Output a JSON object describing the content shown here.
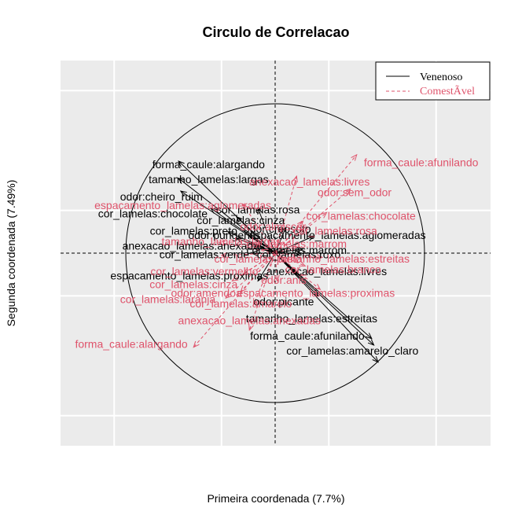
{
  "chart_data": {
    "type": "scatter",
    "title": "Circulo de Correlacao",
    "xlabel": "Primeira coordenada (7.7%)",
    "ylabel": "Segunda coordenada (7.49%)",
    "xlim": [
      -1.0,
      1.0
    ],
    "ylim": [
      -0.9,
      0.9
    ],
    "grid": true,
    "legend_position": "top-right",
    "series": [
      {
        "name": "Venenoso",
        "color": "#000000",
        "line": "solid",
        "points": [
          {
            "label": "forma_caule:alargando",
            "x": -0.45,
            "y": 0.43
          },
          {
            "label": "tamanho_lamelas:largas",
            "x": -0.45,
            "y": 0.35
          },
          {
            "label": "odor:cheiro_ruim",
            "x": -0.44,
            "y": 0.29
          },
          {
            "label": "cor_lamelas:chocolate",
            "x": -0.3,
            "y": 0.21
          },
          {
            "label": "cor_lamelas:rosa",
            "x": -0.08,
            "y": 0.21
          },
          {
            "label": "cor_lamelas:cinza",
            "x": -0.18,
            "y": 0.17
          },
          {
            "label": "odor:creosoto",
            "x": 0.05,
            "y": 0.12
          },
          {
            "label": "cor_lamelas:preto",
            "x": -0.22,
            "y": 0.1
          },
          {
            "label": "odor:pungente",
            "x": -0.18,
            "y": 0.07
          },
          {
            "label": "espacamento_lamelas:aglomeradas",
            "x": 0.18,
            "y": 0.08
          },
          {
            "label": "cor_lamelas:marrom",
            "x": 0.13,
            "y": 0.02
          },
          {
            "label": "anexacao_lamelas:anexadas",
            "x": -0.1,
            "y": 0.03
          },
          {
            "label": "cor_lamelas:verde",
            "x": -0.11,
            "y": 0.0
          },
          {
            "label": "cor_lamelas:roxo",
            "x": 0.12,
            "y": 0.0
          },
          {
            "label": "anexacao_lamelas:livres",
            "x": 0.1,
            "y": -0.1
          },
          {
            "label": "espacamento_lamelas:proximas",
            "x": -0.08,
            "y": -0.13
          },
          {
            "label": "odor:picante",
            "x": 0.2,
            "y": -0.2
          },
          {
            "label": "tamanho_lamelas:estreitas",
            "x": 0.45,
            "y": -0.4
          },
          {
            "label": "forma_caule:afunilando",
            "x": 0.46,
            "y": -0.43
          },
          {
            "label": "cor_lamelas:amarelo_claro",
            "x": 0.48,
            "y": -0.51
          }
        ]
      },
      {
        "name": "ComestÃ­vel",
        "color": "#df536b",
        "line": "dashed",
        "points": [
          {
            "label": "forma_caule:afunilando",
            "x": 0.38,
            "y": 0.46
          },
          {
            "label": "anexacao_lamelas:livres",
            "x": 0.1,
            "y": 0.36
          },
          {
            "label": "odor:sem_odor",
            "x": 0.35,
            "y": 0.3
          },
          {
            "label": "espacamento_lamelas:aglomeradas",
            "x": -0.15,
            "y": 0.23
          },
          {
            "label": "cor_lamelas:chocolate",
            "x": 0.24,
            "y": 0.19
          },
          {
            "label": "cor_lamelas:rosa",
            "x": 0.13,
            "y": 0.15
          },
          {
            "label": "odor:almiscar",
            "x": 0.03,
            "y": 0.12
          },
          {
            "label": "tamanho_lamelas:largas",
            "x": -0.26,
            "y": 0.05
          },
          {
            "label": "cor_lamelas:marrom",
            "x": 0.1,
            "y": 0.03
          },
          {
            "label": "tamanho_lamelas:estreitas",
            "x": 0.22,
            "y": -0.02
          },
          {
            "label": "cor_lamelas:preto",
            "x": -0.25,
            "y": -0.01
          },
          {
            "label": "cor_lamelas:branco",
            "x": 0.14,
            "y": -0.06
          },
          {
            "label": "cor_lamelas:vermelho",
            "x": -0.15,
            "y": -0.1
          },
          {
            "label": "odor:anis",
            "x": 0.01,
            "y": -0.13
          },
          {
            "label": "cor_lamelas:cinza",
            "x": -0.2,
            "y": -0.13
          },
          {
            "label": "odor:amendoa",
            "x": -0.16,
            "y": -0.18
          },
          {
            "label": "espacamento_lamelas:proximas",
            "x": 0.21,
            "y": -0.17
          },
          {
            "label": "cor_lamelas:laranja",
            "x": -0.23,
            "y": -0.21
          },
          {
            "label": "cor_lamelas:amarelo",
            "x": -0.1,
            "y": -0.24
          },
          {
            "label": "anexacao_lamelas:anexadas",
            "x": -0.12,
            "y": -0.36
          },
          {
            "label": "forma_caule:alargando",
            "x": -0.38,
            "y": -0.44
          }
        ]
      }
    ],
    "labels": [
      {
        "text": "forma_caule:alargando",
        "series": 0,
        "x": -0.31,
        "y": 0.41
      },
      {
        "text": "tamanho_lamelas:largas",
        "series": 0,
        "x": -0.31,
        "y": 0.34
      },
      {
        "text": "odor:cheiro_ruim",
        "series": 0,
        "x": -0.53,
        "y": 0.26
      },
      {
        "text": "cor_lamelas:chocolate",
        "series": 0,
        "x": -0.57,
        "y": 0.18
      },
      {
        "text": "cor_lamelas:rosa",
        "series": 0,
        "x": -0.08,
        "y": 0.2
      },
      {
        "text": "cor_lamelas:cinza",
        "series": 0,
        "x": -0.16,
        "y": 0.15
      },
      {
        "text": "odor:creosoto",
        "series": 0,
        "x": 0.01,
        "y": 0.11
      },
      {
        "text": "cor_lamelas:preto",
        "series": 0,
        "x": -0.38,
        "y": 0.1
      },
      {
        "text": "odor:pungente",
        "series": 0,
        "x": -0.24,
        "y": 0.08
      },
      {
        "text": "espacamento_lamelas:aglomeradas",
        "series": 0,
        "x": 0.29,
        "y": 0.08
      },
      {
        "text": "cor_lamelas:marrom",
        "series": 0,
        "x": 0.1,
        "y": 0.01
      },
      {
        "text": "anexacao_lamelas:anexadas",
        "series": 0,
        "x": -0.38,
        "y": 0.03
      },
      {
        "text": "cor_lamelas:verde",
        "series": 0,
        "x": -0.33,
        "y": -0.01
      },
      {
        "text": "cor_lamelas:roxo",
        "series": 0,
        "x": 0.11,
        "y": -0.01
      },
      {
        "text": "anexacao_lamelas:livres",
        "series": 0,
        "x": 0.24,
        "y": -0.09
      },
      {
        "text": "espacamento_lamelas:proximas",
        "series": 0,
        "x": -0.4,
        "y": -0.11
      },
      {
        "text": "odor:picante",
        "series": 0,
        "x": 0.04,
        "y": -0.23
      },
      {
        "text": "tamanho_lamelas:estreitas",
        "series": 0,
        "x": 0.17,
        "y": -0.31
      },
      {
        "text": "forma_caule:afunilando",
        "series": 0,
        "x": 0.15,
        "y": -0.39
      },
      {
        "text": "cor_lamelas:amarelo_claro",
        "series": 0,
        "x": 0.36,
        "y": -0.46
      },
      {
        "text": "forma_caule:afunilando",
        "series": 1,
        "x": 0.68,
        "y": 0.42
      },
      {
        "text": "anexacao_lamelas:livres",
        "series": 1,
        "x": 0.16,
        "y": 0.33
      },
      {
        "text": "odor:sem_odor",
        "series": 1,
        "x": 0.37,
        "y": 0.28
      },
      {
        "text": "espacamento_lamelas:aglomeradas",
        "series": 1,
        "x": -0.43,
        "y": 0.22
      },
      {
        "text": "cor_lamelas:chocolate",
        "series": 1,
        "x": 0.4,
        "y": 0.17
      },
      {
        "text": "cor_lamelas:rosa",
        "series": 1,
        "x": 0.28,
        "y": 0.1
      },
      {
        "text": "odor:almiscar",
        "series": 1,
        "x": -0.01,
        "y": 0.12
      },
      {
        "text": "tamanho_lamelas:largas",
        "series": 1,
        "x": -0.25,
        "y": 0.05
      },
      {
        "text": "cor_lamelas:marrom",
        "series": 1,
        "x": 0.1,
        "y": 0.04
      },
      {
        "text": "tamanho_lamelas:estreitas",
        "series": 1,
        "x": 0.32,
        "y": -0.03
      },
      {
        "text": "cor_lamelas:preto",
        "series": 1,
        "x": -0.08,
        "y": -0.03
      },
      {
        "text": "cor_lamelas:branco",
        "series": 1,
        "x": 0.27,
        "y": -0.08
      },
      {
        "text": "cor_lamelas:vermelho",
        "series": 1,
        "x": -0.33,
        "y": -0.09
      },
      {
        "text": "odor:anis",
        "series": 1,
        "x": 0.04,
        "y": -0.13
      },
      {
        "text": "cor_lamelas:cinza",
        "series": 1,
        "x": -0.38,
        "y": -0.15
      },
      {
        "text": "odor:amendoa",
        "series": 1,
        "x": -0.32,
        "y": -0.19
      },
      {
        "text": "espacamento_lamelas:proximas",
        "series": 1,
        "x": 0.19,
        "y": -0.19
      },
      {
        "text": "cor_lamelas:laranja",
        "series": 1,
        "x": -0.5,
        "y": -0.22
      },
      {
        "text": "cor_lamelas:amarelo",
        "series": 1,
        "x": -0.16,
        "y": -0.24
      },
      {
        "text": "anexacao_lamelas:anexadas",
        "series": 1,
        "x": -0.12,
        "y": -0.32
      },
      {
        "text": "forma_caule:alargando",
        "series": 1,
        "x": -0.67,
        "y": -0.43
      }
    ]
  }
}
